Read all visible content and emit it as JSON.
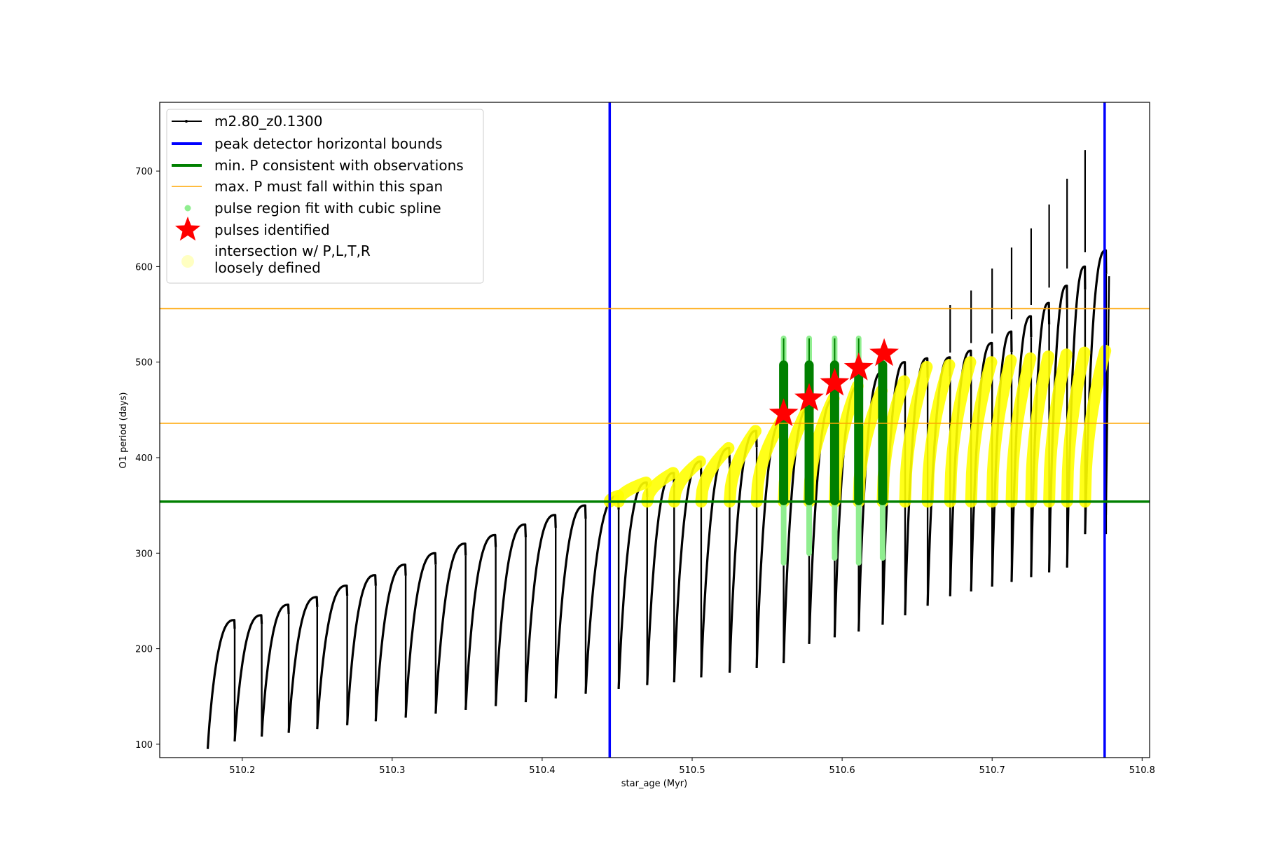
{
  "chart_data": {
    "type": "scatter",
    "xlabel": "star_age (Myr)",
    "ylabel": "O1 period (days)",
    "xlim": [
      510.145,
      510.805
    ],
    "ylim": [
      86,
      772
    ],
    "x_ticks": [
      510.2,
      510.3,
      510.4,
      510.5,
      510.6,
      510.7,
      510.8
    ],
    "x_tick_labels": [
      "510.2",
      "510.3",
      "510.4",
      "510.5",
      "510.6",
      "510.7",
      "510.8"
    ],
    "y_ticks": [
      100,
      200,
      300,
      400,
      500,
      600,
      700
    ],
    "y_tick_labels": [
      "100",
      "200",
      "300",
      "400",
      "500",
      "600",
      "700"
    ],
    "grid": false,
    "legend_position": "top-left",
    "colors": {
      "track": "#000000",
      "bounds": "#0000ff",
      "min_p": "#008000",
      "max_p_span": "#ffa500",
      "spline": "#90ee90",
      "pulse_dark": "#008000",
      "stars": "#ff0000",
      "intersection": "#ffff00"
    },
    "series": [
      {
        "name": "m2.80_z0.1300",
        "kind": "line-markers",
        "pulses": [
          {
            "start": 510.177,
            "end": 510.195,
            "min": 95,
            "max": 230
          },
          {
            "start": 510.195,
            "end": 510.213,
            "min": 103,
            "max": 235
          },
          {
            "start": 510.213,
            "end": 510.231,
            "min": 108,
            "max": 246
          },
          {
            "start": 510.231,
            "end": 510.25,
            "min": 112,
            "max": 254
          },
          {
            "start": 510.25,
            "end": 510.27,
            "min": 116,
            "max": 266
          },
          {
            "start": 510.27,
            "end": 510.289,
            "min": 120,
            "max": 277
          },
          {
            "start": 510.289,
            "end": 510.309,
            "min": 124,
            "max": 288
          },
          {
            "start": 510.309,
            "end": 510.329,
            "min": 128,
            "max": 300
          },
          {
            "start": 510.329,
            "end": 510.349,
            "min": 132,
            "max": 310
          },
          {
            "start": 510.349,
            "end": 510.369,
            "min": 136,
            "max": 319
          },
          {
            "start": 510.369,
            "end": 510.389,
            "min": 140,
            "max": 330
          },
          {
            "start": 510.389,
            "end": 510.409,
            "min": 144,
            "max": 340
          },
          {
            "start": 510.409,
            "end": 510.429,
            "min": 148,
            "max": 350
          },
          {
            "start": 510.429,
            "end": 510.451,
            "min": 153,
            "max": 360
          },
          {
            "start": 510.451,
            "end": 510.47,
            "min": 158,
            "max": 374
          },
          {
            "start": 510.47,
            "end": 510.488,
            "min": 162,
            "max": 384
          },
          {
            "start": 510.488,
            "end": 510.506,
            "min": 165,
            "max": 396
          },
          {
            "start": 510.506,
            "end": 510.525,
            "min": 170,
            "max": 410
          },
          {
            "start": 510.525,
            "end": 510.543,
            "min": 175,
            "max": 428
          },
          {
            "start": 510.543,
            "end": 510.561,
            "min": 180,
            "max": 440
          },
          {
            "start": 510.561,
            "end": 510.578,
            "min": 185,
            "max": 452
          },
          {
            "start": 510.578,
            "end": 510.595,
            "min": 205,
            "max": 462
          },
          {
            "start": 510.595,
            "end": 510.611,
            "min": 212,
            "max": 475
          },
          {
            "start": 510.611,
            "end": 510.627,
            "min": 218,
            "max": 490
          },
          {
            "start": 510.627,
            "end": 510.642,
            "min": 225,
            "max": 500
          },
          {
            "start": 510.642,
            "end": 510.657,
            "min": 235,
            "max": 504
          },
          {
            "start": 510.657,
            "end": 510.672,
            "min": 245,
            "max": 505
          },
          {
            "start": 510.672,
            "end": 510.686,
            "min": 255,
            "max": 512
          },
          {
            "start": 510.686,
            "end": 510.7,
            "min": 260,
            "max": 520
          },
          {
            "start": 510.7,
            "end": 510.713,
            "min": 265,
            "max": 532
          },
          {
            "start": 510.713,
            "end": 510.726,
            "min": 270,
            "max": 548
          },
          {
            "start": 510.726,
            "end": 510.738,
            "min": 275,
            "max": 562
          },
          {
            "start": 510.738,
            "end": 510.75,
            "min": 280,
            "max": 580
          },
          {
            "start": 510.75,
            "end": 510.762,
            "min": 285,
            "max": 600
          },
          {
            "start": 510.762,
            "end": 510.776,
            "min": 320,
            "max": 617
          }
        ],
        "spikes": [
          {
            "x": 510.672,
            "top": 560,
            "bottom": 510
          },
          {
            "x": 510.686,
            "top": 575,
            "bottom": 520
          },
          {
            "x": 510.7,
            "top": 598,
            "bottom": 530
          },
          {
            "x": 510.713,
            "top": 620,
            "bottom": 545
          },
          {
            "x": 510.726,
            "top": 640,
            "bottom": 560
          },
          {
            "x": 510.738,
            "top": 665,
            "bottom": 578
          },
          {
            "x": 510.75,
            "top": 692,
            "bottom": 598
          },
          {
            "x": 510.762,
            "top": 722,
            "bottom": 615
          }
        ],
        "tail": {
          "x": [
            510.776,
            510.778
          ],
          "y": [
            340,
            590
          ]
        }
      },
      {
        "name": "peak detector horizontal bounds",
        "kind": "vlines",
        "x": [
          510.445,
          510.775
        ]
      },
      {
        "name": "min. P consistent with observations",
        "kind": "hline",
        "y": 354
      },
      {
        "name": "max. P must fall within this span",
        "kind": "hlines",
        "y": [
          436,
          556
        ]
      },
      {
        "name": "pulse region fit with cubic spline",
        "kind": "spline-columns",
        "columns": [
          {
            "x": 510.561,
            "y_low": 290,
            "y_high": 525
          },
          {
            "x": 510.578,
            "y_low": 300,
            "y_high": 525
          },
          {
            "x": 510.595,
            "y_low": 295,
            "y_high": 525
          },
          {
            "x": 510.611,
            "y_low": 290,
            "y_high": 525
          },
          {
            "x": 510.627,
            "y_low": 295,
            "y_high": 500
          }
        ],
        "dark_columns": [
          {
            "x": 510.561,
            "y_low": 355,
            "y_high": 497
          },
          {
            "x": 510.578,
            "y_low": 355,
            "y_high": 497
          },
          {
            "x": 510.595,
            "y_low": 355,
            "y_high": 497
          },
          {
            "x": 510.611,
            "y_low": 355,
            "y_high": 497
          },
          {
            "x": 510.627,
            "y_low": 355,
            "y_high": 497
          }
        ]
      },
      {
        "name": "pulses identified",
        "kind": "stars",
        "x": [
          510.561,
          510.578,
          510.595,
          510.611,
          510.628
        ],
        "y": [
          446,
          462,
          478,
          494,
          509
        ]
      },
      {
        "name": "intersection w/ P,L,T,R\nloosely defined",
        "kind": "highlight-pulses",
        "pulses": [
          {
            "start": 510.445,
            "end": 510.451,
            "max": 360
          },
          {
            "start": 510.451,
            "end": 510.47,
            "max": 374
          },
          {
            "start": 510.47,
            "end": 510.488,
            "max": 384
          },
          {
            "start": 510.488,
            "end": 510.506,
            "max": 396
          },
          {
            "start": 510.506,
            "end": 510.525,
            "max": 410
          },
          {
            "start": 510.525,
            "end": 510.543,
            "max": 428
          },
          {
            "start": 510.543,
            "end": 510.561,
            "max": 440
          },
          {
            "start": 510.561,
            "end": 510.578,
            "max": 452
          },
          {
            "start": 510.578,
            "end": 510.595,
            "max": 462
          },
          {
            "start": 510.595,
            "end": 510.611,
            "max": 475
          },
          {
            "start": 510.611,
            "end": 510.627,
            "max": 470
          },
          {
            "start": 510.627,
            "end": 510.642,
            "max": 480
          },
          {
            "start": 510.642,
            "end": 510.657,
            "max": 495
          },
          {
            "start": 510.657,
            "end": 510.672,
            "max": 497
          },
          {
            "start": 510.672,
            "end": 510.686,
            "max": 500
          },
          {
            "start": 510.686,
            "end": 510.7,
            "max": 500
          },
          {
            "start": 510.7,
            "end": 510.713,
            "max": 502
          },
          {
            "start": 510.713,
            "end": 510.726,
            "max": 504
          },
          {
            "start": 510.726,
            "end": 510.738,
            "max": 506
          },
          {
            "start": 510.738,
            "end": 510.75,
            "max": 508
          },
          {
            "start": 510.75,
            "end": 510.762,
            "max": 510
          },
          {
            "start": 510.762,
            "end": 510.776,
            "max": 512
          }
        ]
      }
    ],
    "legend": [
      "m2.80_z0.1300",
      "peak detector horizontal bounds",
      "min. P consistent with observations",
      "max. P must fall within this span",
      "pulse region fit with cubic spline",
      "pulses identified",
      "intersection w/ P,L,T,R",
      "loosely defined"
    ]
  }
}
